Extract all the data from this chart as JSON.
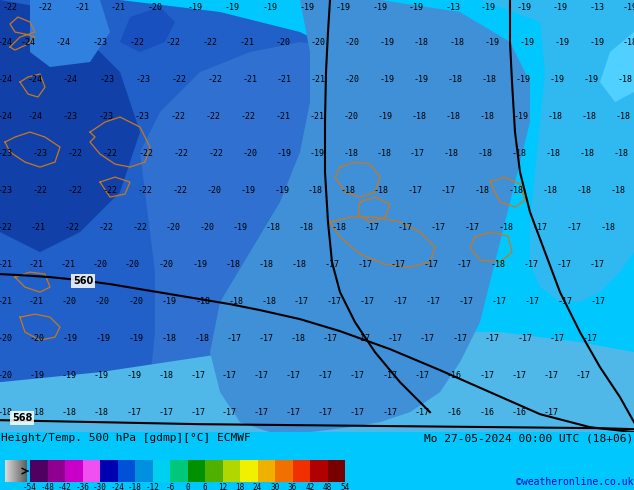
{
  "title_left": "Height/Temp. 500 hPa [gdmp][°C] ECMWF",
  "title_right": "Mo 27-05-2024 00:00 UTC (18+06)",
  "credit": "©weatheronline.co.uk",
  "colorbar_bounds": [
    -54,
    -48,
    -42,
    -36,
    -30,
    -24,
    -18,
    -12,
    -6,
    0,
    6,
    12,
    18,
    24,
    30,
    36,
    42,
    48,
    54
  ],
  "colorbar_colors": [
    "#500060",
    "#900090",
    "#c800c8",
    "#f050f0",
    "#0000b0",
    "#0050d8",
    "#0090e0",
    "#00d0f0",
    "#00c878",
    "#009000",
    "#50b000",
    "#b0d800",
    "#f0f000",
    "#f0b000",
    "#f07000",
    "#f03000",
    "#b00000",
    "#780000"
  ],
  "bg_color": "#00c8ff",
  "coast_color": "#c87820",
  "contour_color": "#000000",
  "label_fontsize": 6.0,
  "title_fontsize": 8.0,
  "credit_fontsize": 7.0,
  "tick_fontsize": 5.5
}
